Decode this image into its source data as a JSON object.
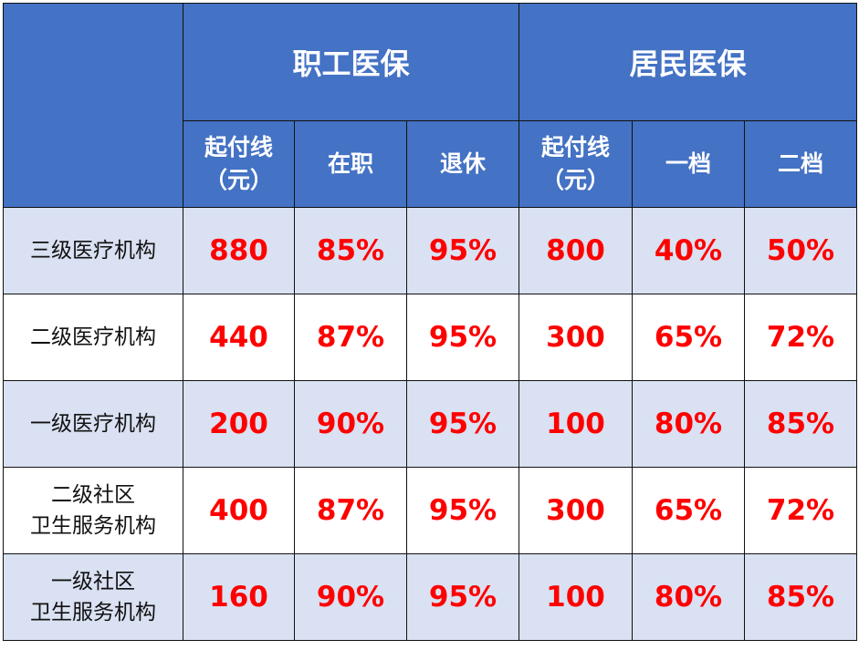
{
  "header": {
    "groups": [
      "职工医保",
      "居民医保"
    ],
    "sub_columns": [
      {
        "line1": "起付线",
        "line2": "（元）"
      },
      {
        "line1": "在职",
        "line2": ""
      },
      {
        "line1": "退休",
        "line2": ""
      },
      {
        "line1": "起付线",
        "line2": "（元）"
      },
      {
        "line1": "一档",
        "line2": ""
      },
      {
        "line1": "二档",
        "line2": ""
      }
    ]
  },
  "rows": [
    {
      "line1": "三级医疗机构",
      "line2": "",
      "values": [
        "880",
        "85%",
        "95%",
        "800",
        "40%",
        "50%"
      ]
    },
    {
      "line1": "二级医疗机构",
      "line2": "",
      "values": [
        "440",
        "87%",
        "95%",
        "300",
        "65%",
        "72%"
      ]
    },
    {
      "line1": "一级医疗机构",
      "line2": "",
      "values": [
        "200",
        "90%",
        "95%",
        "100",
        "80%",
        "85%"
      ]
    },
    {
      "line1": "二级社区",
      "line2": "卫生服务机构",
      "values": [
        "400",
        "87%",
        "95%",
        "300",
        "65%",
        "72%"
      ]
    },
    {
      "line1": "一级社区",
      "line2": "卫生服务机构",
      "values": [
        "160",
        "90%",
        "95%",
        "100",
        "80%",
        "85%"
      ]
    }
  ],
  "colors": {
    "header_bg": "#4472C4",
    "row_alt_bg": "#D9E1F2",
    "value_text": "#FF0000"
  }
}
